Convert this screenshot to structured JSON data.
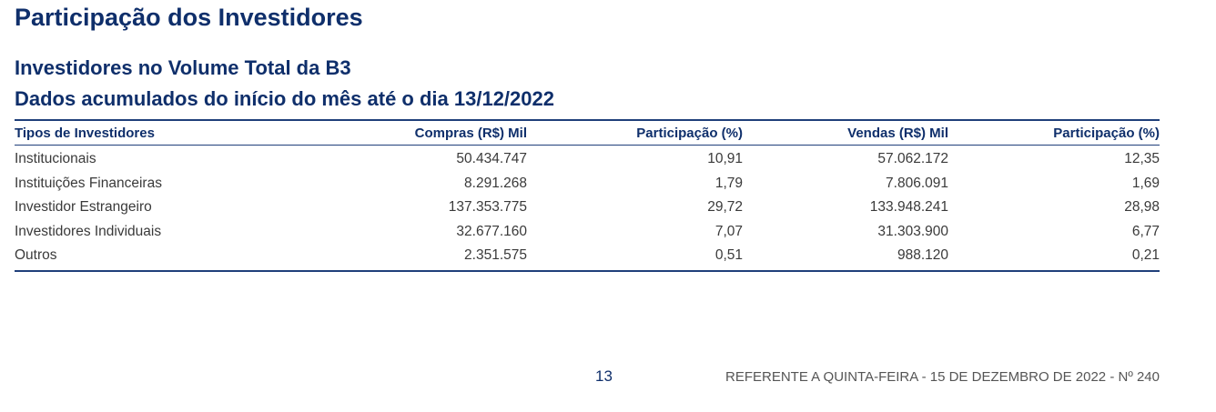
{
  "header": {
    "title": "Participação dos Investidores",
    "section_title": "Investidores no Volume Total da B3",
    "section_subtitle": "Dados acumulados do início do mês até o dia 13/12/2022"
  },
  "table": {
    "columns": [
      "Tipos de Investidores",
      "Compras (R$) Mil",
      "Participação (%)",
      "Vendas (R$) Mil",
      "Participação (%)"
    ],
    "rows": [
      [
        "Institucionais",
        "50.434.747",
        "10,91",
        "57.062.172",
        "12,35"
      ],
      [
        "Instituições Financeiras",
        "8.291.268",
        "1,79",
        "7.806.091",
        "1,69"
      ],
      [
        "Investidor Estrangeiro",
        "137.353.775",
        "29,72",
        "133.948.241",
        "28,98"
      ],
      [
        "Investidores Individuais",
        "32.677.160",
        "7,07",
        "31.303.900",
        "6,77"
      ],
      [
        "Outros",
        "2.351.575",
        "0,51",
        "988.120",
        "0,21"
      ]
    ]
  },
  "footer": {
    "page_number": "13",
    "reference": "REFERENTE A QUINTA-FEIRA - 15 DE DEZEMBRO DE 2022 - Nº 240"
  },
  "colors": {
    "heading": "#0f2f6b",
    "rule": "#1f3f7a",
    "body_text": "#3a3a3a"
  }
}
